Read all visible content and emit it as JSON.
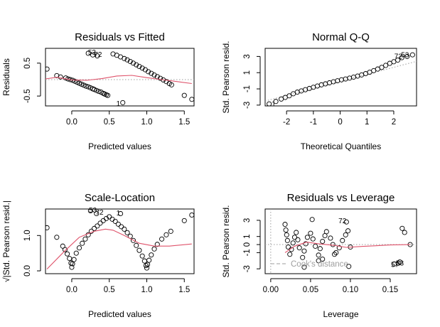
{
  "chart_data": [
    {
      "id": "rvf",
      "type": "scatter",
      "title": "Residuals vs Fitted",
      "xlabel": "Predicted values",
      "ylabel": "Residuals",
      "xlim": [
        -0.35,
        1.63
      ],
      "ylim": [
        -0.8,
        0.95
      ],
      "xticks": [
        0.0,
        0.5,
        1.0,
        1.5
      ],
      "xtick_labels": [
        "0.0",
        "0.5",
        "1.0",
        "1.5"
      ],
      "yticks": [
        -0.5,
        0.5
      ],
      "ytick_labels": [
        "-0.5",
        "0.5"
      ],
      "reference_line": {
        "y": 0,
        "style": "dotted",
        "color": "#9e9e9e"
      },
      "smooth": {
        "color": "#DF536B",
        "x": [
          -0.35,
          -0.2,
          0.0,
          0.2,
          0.4,
          0.6,
          0.8,
          1.0,
          1.2,
          1.4,
          1.6
        ],
        "y": [
          0.02,
          0.07,
          -0.01,
          -0.02,
          0.03,
          0.11,
          0.13,
          0.06,
          0.0,
          -0.06,
          -0.12
        ]
      },
      "x": [
        -0.33,
        -0.2,
        -0.15,
        -0.08,
        -0.05,
        -0.02,
        0.01,
        0.04,
        0.07,
        0.1,
        0.13,
        0.16,
        0.19,
        0.22,
        0.25,
        0.28,
        0.3,
        0.33,
        0.36,
        0.39,
        0.42,
        0.44,
        0.46,
        0.48,
        0.22,
        0.28,
        0.34,
        0.68,
        0.55,
        0.6,
        0.65,
        0.7,
        0.74,
        0.78,
        0.82,
        0.86,
        0.9,
        0.94,
        0.98,
        1.02,
        1.06,
        1.1,
        1.14,
        1.18,
        1.22,
        1.26,
        1.3,
        1.33,
        1.5,
        1.6
      ],
      "y": [
        0.32,
        0.12,
        0.08,
        0.05,
        0.02,
        0.0,
        -0.02,
        -0.05,
        -0.08,
        -0.11,
        -0.14,
        -0.17,
        -0.2,
        -0.22,
        -0.25,
        -0.28,
        -0.3,
        -0.33,
        -0.36,
        -0.38,
        -0.42,
        -0.44,
        -0.46,
        -0.48,
        0.8,
        0.75,
        0.72,
        -0.7,
        0.78,
        0.74,
        0.69,
        0.64,
        0.6,
        0.55,
        0.5,
        0.45,
        0.4,
        0.35,
        0.3,
        0.24,
        0.19,
        0.14,
        0.09,
        0.04,
        -0.01,
        -0.06,
        -0.12,
        -0.16,
        -0.48,
        -0.6
      ],
      "annotations": [
        {
          "text": "53",
          "x": 0.27,
          "y": 0.83
        },
        {
          "text": "72",
          "x": 0.35,
          "y": 0.77
        },
        {
          "text": "1",
          "x": 0.62,
          "y": -0.72
        }
      ]
    },
    {
      "id": "qq",
      "type": "scatter",
      "title": "Normal Q-Q",
      "xlabel": "Theoretical Quantiles",
      "ylabel": "Std. Pearson resid.",
      "xlim": [
        -2.8,
        2.85
      ],
      "ylim": [
        -3.1,
        4.0
      ],
      "xticks": [
        -2,
        -1,
        0,
        1,
        2
      ],
      "xtick_labels": [
        "-2",
        "-1",
        "0",
        "1",
        "2"
      ],
      "yticks": [
        -3,
        -1,
        1,
        3
      ],
      "ytick_labels": [
        "-3",
        "-1",
        "1",
        "3"
      ],
      "reference_line": {
        "x": [
          -2.8,
          2.85
        ],
        "y": [
          -2.5,
          2.4
        ],
        "style": "dotted",
        "color": "#9e9e9e"
      },
      "x": [
        -2.65,
        -2.4,
        -2.2,
        -2.05,
        -1.9,
        -1.75,
        -1.6,
        -1.45,
        -1.3,
        -1.15,
        -1.0,
        -0.85,
        -0.7,
        -0.55,
        -0.4,
        -0.25,
        -0.1,
        0.05,
        0.2,
        0.35,
        0.5,
        0.65,
        0.8,
        0.95,
        1.1,
        1.25,
        1.4,
        1.55,
        1.7,
        1.85,
        2.0,
        2.15,
        2.3,
        2.5,
        2.7
      ],
      "y": [
        -2.85,
        -2.55,
        -2.25,
        -2.05,
        -1.85,
        -1.6,
        -1.4,
        -1.25,
        -1.1,
        -0.95,
        -0.8,
        -0.65,
        -0.5,
        -0.38,
        -0.25,
        -0.12,
        0.0,
        0.12,
        0.22,
        0.33,
        0.45,
        0.58,
        0.72,
        0.88,
        1.05,
        1.25,
        1.45,
        1.65,
        1.9,
        2.15,
        2.35,
        2.55,
        2.85,
        3.0,
        3.2
      ],
      "annotations": [
        {
          "text": "1",
          "x": -2.48,
          "y": -2.85
        },
        {
          "text": "72",
          "x": 2.17,
          "y": 3.05
        },
        {
          "text": "53",
          "x": 2.42,
          "y": 3.2
        }
      ]
    },
    {
      "id": "sl",
      "type": "scatter",
      "title": "Scale-Location",
      "xlabel": "Predicted values",
      "ylabel": "√|Std. Pearson resid.|",
      "xlim": [
        -0.35,
        1.63
      ],
      "ylim": [
        -0.08,
        1.75
      ],
      "xticks": [
        0.0,
        0.5,
        1.0,
        1.5
      ],
      "xtick_labels": [
        "0.0",
        "0.5",
        "1.0",
        "1.5"
      ],
      "yticks": [
        0.0,
        1.0
      ],
      "ytick_labels": [
        "0.0",
        "1.0"
      ],
      "smooth": {
        "color": "#DF536B",
        "x": [
          -0.33,
          -0.1,
          0.1,
          0.3,
          0.45,
          0.55,
          0.7,
          0.9,
          1.1,
          1.3,
          1.6
        ],
        "y": [
          0.05,
          0.55,
          0.95,
          1.12,
          1.18,
          1.15,
          1.0,
          0.78,
          0.7,
          0.7,
          0.76
        ]
      },
      "x": [
        -0.33,
        -0.2,
        -0.12,
        -0.09,
        -0.06,
        -0.03,
        -0.01,
        0.0,
        0.01,
        0.03,
        0.06,
        0.1,
        0.14,
        0.18,
        0.22,
        0.26,
        0.3,
        0.34,
        0.38,
        0.42,
        0.46,
        0.5,
        0.54,
        0.58,
        0.62,
        0.66,
        0.7,
        0.74,
        0.78,
        0.82,
        0.86,
        0.9,
        0.94,
        0.97,
        0.99,
        1.0,
        1.01,
        1.03,
        1.06,
        1.1,
        1.14,
        1.2,
        1.26,
        1.32,
        1.5,
        1.6,
        0.25,
        0.33,
        0.65
      ],
      "y": [
        1.22,
        0.95,
        0.7,
        0.6,
        0.48,
        0.35,
        0.22,
        0.1,
        0.2,
        0.32,
        0.5,
        0.65,
        0.78,
        0.9,
        1.02,
        1.12,
        1.2,
        1.27,
        1.35,
        1.42,
        1.48,
        1.53,
        1.46,
        1.4,
        1.32,
        1.25,
        1.18,
        1.08,
        0.98,
        0.86,
        0.72,
        0.58,
        0.42,
        0.28,
        0.15,
        0.08,
        0.18,
        0.3,
        0.45,
        0.62,
        0.75,
        0.9,
        1.02,
        1.12,
        1.42,
        1.58,
        1.7,
        1.62,
        1.62
      ],
      "annotations": [
        {
          "text": "53",
          "x": 0.28,
          "y": 1.72
        },
        {
          "text": "72",
          "x": 0.37,
          "y": 1.66
        },
        {
          "text": "1",
          "x": 0.62,
          "y": 1.64
        }
      ]
    },
    {
      "id": "rvl",
      "type": "scatter",
      "title": "Residuals vs Leverage",
      "xlabel": "Leverage",
      "ylabel": "Std. Pearson resid.",
      "xlim": [
        -0.007,
        0.183
      ],
      "ylim": [
        -3.6,
        4.4
      ],
      "xticks": [
        0.0,
        0.05,
        0.1,
        0.15
      ],
      "xtick_labels": [
        "0.00",
        "0.05",
        "0.10",
        "0.15"
      ],
      "yticks": [
        -3,
        -1,
        0,
        1,
        3
      ],
      "ytick_labels": [
        "-3",
        "-1",
        "0",
        "1",
        "3"
      ],
      "legend": {
        "text": "Cook's distance",
        "position": "bottom-left"
      },
      "smooth": {
        "color": "#DF536B",
        "x": [
          0.018,
          0.03,
          0.045,
          0.06,
          0.08,
          0.095,
          0.11,
          0.13,
          0.15,
          0.175
        ],
        "y": [
          -1.0,
          -0.2,
          0.3,
          0.1,
          -0.1,
          -0.35,
          -0.25,
          -0.15,
          -0.05,
          0.0
        ]
      },
      "x": [
        0.018,
        0.019,
        0.02,
        0.021,
        0.022,
        0.024,
        0.026,
        0.028,
        0.03,
        0.032,
        0.034,
        0.036,
        0.04,
        0.042,
        0.044,
        0.046,
        0.05,
        0.053,
        0.056,
        0.06,
        0.062,
        0.065,
        0.068,
        0.07,
        0.075,
        0.078,
        0.082,
        0.086,
        0.09,
        0.094,
        0.097,
        0.1,
        0.052,
        0.095,
        0.098,
        0.042,
        0.06,
        0.155,
        0.16,
        0.162,
        0.165,
        0.168,
        0.175,
        0.065,
        0.08
      ],
      "y": [
        2.5,
        1.8,
        1.2,
        0.5,
        -0.3,
        -1.2,
        -0.6,
        0.2,
        0.9,
        1.5,
        0.6,
        -0.4,
        -1.6,
        -0.8,
        0.1,
        0.9,
        1.4,
        0.7,
        -0.2,
        -1.3,
        -0.5,
        0.4,
        1.1,
        1.6,
        0.8,
        0.0,
        -1.0,
        -0.4,
        0.5,
        1.2,
        1.7,
        -0.3,
        3.1,
        2.8,
        -2.7,
        -2.8,
        -2.0,
        -2.4,
        -2.3,
        -2.15,
        2.0,
        1.5,
        0.0,
        -1.8,
        -1.2
      ],
      "annotations": [
        {
          "text": "72",
          "x": 0.09,
          "y": 2.95
        },
        {
          "text": "57",
          "x": 0.156,
          "y": -2.45
        },
        {
          "text": "53",
          "x": 0.162,
          "y": -2.3
        }
      ]
    }
  ]
}
